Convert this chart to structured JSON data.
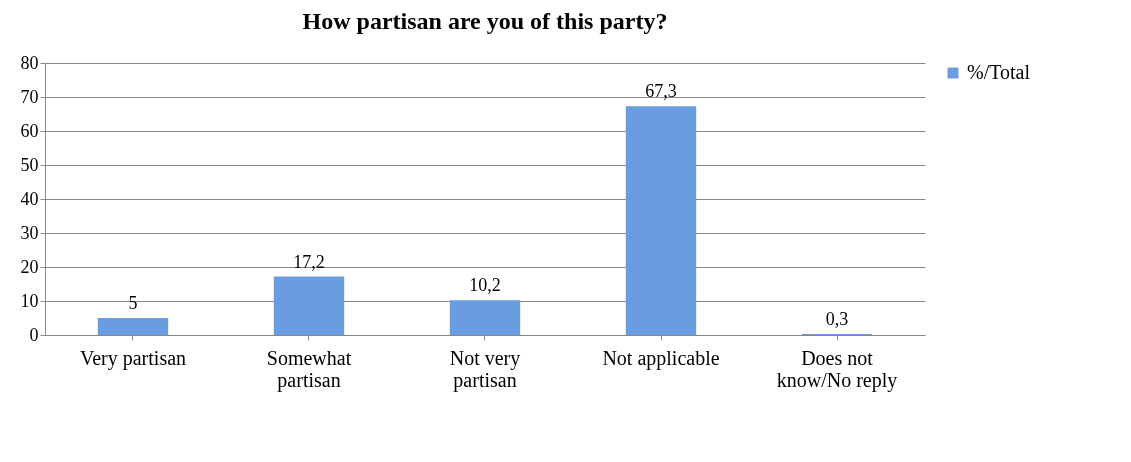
{
  "chart_data": {
    "type": "bar",
    "title": "How partisan are you of this party?",
    "categories": [
      "Very partisan",
      "Somewhat partisan",
      "Not very partisan",
      "Not applicable",
      "Does not know/No reply"
    ],
    "series": [
      {
        "name": "%/Total",
        "color": "#6a9de0",
        "values": [
          5,
          17.2,
          10.2,
          67.3,
          0.3
        ],
        "value_labels": [
          "5",
          "17,2",
          "10,2",
          "67,3",
          "0,3"
        ]
      }
    ],
    "ylim": [
      0,
      80
    ],
    "yticks": [
      0,
      10,
      20,
      30,
      40,
      50,
      60,
      70,
      80
    ],
    "grid": "y",
    "legend": "right"
  }
}
